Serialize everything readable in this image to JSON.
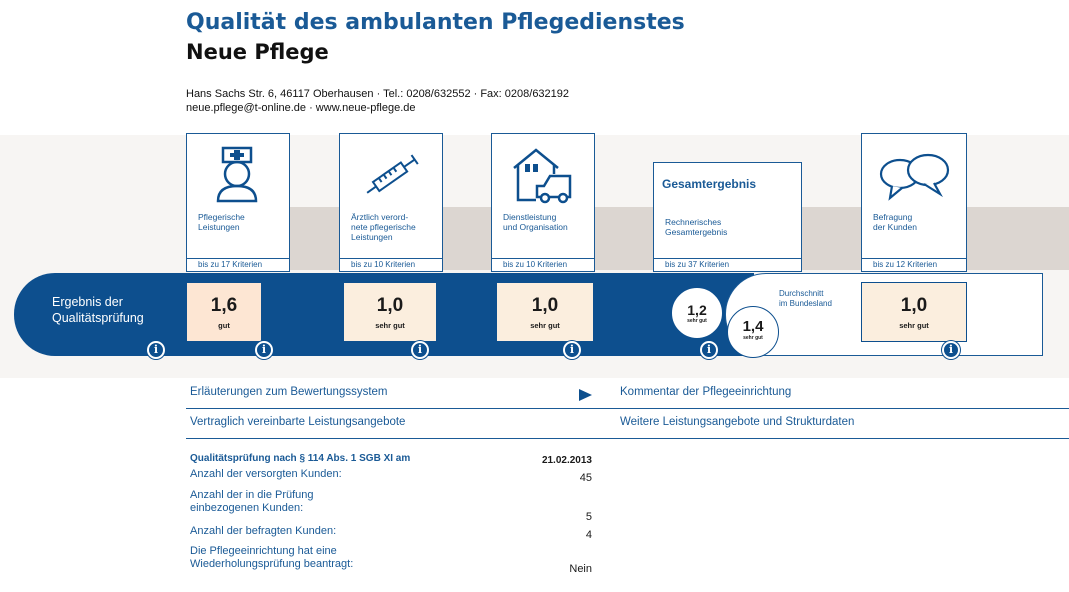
{
  "header": {
    "title": "Qualität des ambulanten Pflegedienstes",
    "name": "Neue Pflege",
    "address_line": "Hans Sachs Str. 6, 46117 Oberhausen · Tel.: 0208/632552 · Fax: 0208/632192",
    "contact_line": "neue.pflege@t-online.de · www.neue-pflege.de"
  },
  "result_label_line1": "Ergebnis der",
  "result_label_line2": "Qualitätsprüfung",
  "categories": [
    {
      "label_line1": "Pflegerische",
      "label_line2": "Leistungen",
      "label_line3": "",
      "criteria": "bis zu 17 Kriterien",
      "score": "1,6",
      "grade": "gut",
      "icon": "nurse-icon"
    },
    {
      "label_line1": "Ärztlich verord-",
      "label_line2": "nete pflegerische",
      "label_line3": "Leistungen",
      "criteria": "bis zu 10 Kriterien",
      "score": "1,0",
      "grade": "sehr gut",
      "icon": "syringe-icon"
    },
    {
      "label_line1": "Dienstleistung",
      "label_line2": "und Organisation",
      "label_line3": "",
      "criteria": "bis zu 10 Kriterien",
      "score": "1,0",
      "grade": "sehr gut",
      "icon": "house-car-icon"
    },
    {
      "heading": "Gesamtergebnis",
      "label_line1": "Rechnerisches",
      "label_line2": "Gesamtergebnis",
      "label_line3": "",
      "criteria": "bis zu 37 Kriterien",
      "score": "1,2",
      "grade": "sehr gut"
    },
    {
      "label_line1": "Befragung",
      "label_line2": "der Kunden",
      "label_line3": "",
      "criteria": "bis zu 12 Kriterien",
      "score": "1,0",
      "grade": "sehr gut",
      "icon": "speech-bubbles-icon"
    }
  ],
  "state_average": {
    "label_line1": "Durchschnitt",
    "label_line2": "im Bundesland",
    "score": "1,4",
    "grade": "sehr gut"
  },
  "info_glyph": "i",
  "links": {
    "explanations": "Erläuterungen zum Bewertungssystem",
    "contract_services": "Vertraglich vereinbarte Leistungsangebote",
    "comment": "Kommentar der Pflegeeinrichtung",
    "more_services": "Weitere Leistungsangebote und Strukturdaten"
  },
  "facts": [
    {
      "label": "Qualitätsprüfung nach § 114 Abs. 1 SGB XI am",
      "value": "21.02.2013"
    },
    {
      "label": "Anzahl der versorgten Kunden:",
      "value": "45"
    },
    {
      "label_line1": "Anzahl der in die Prüfung",
      "label_line2": "einbezogenen Kunden:",
      "value": "5"
    },
    {
      "label": "Anzahl der befragten Kunden:",
      "value": "4"
    },
    {
      "label_line1": "Die Pflegeeinrichtung hat eine",
      "label_line2": "Wiederholungsprüfung beantragt:",
      "value": "Nein"
    }
  ],
  "colors": {
    "primary": "#0d4f8e",
    "text_blue": "#1a5a96",
    "band_gray": "#dcd6d1",
    "score_bg": "#fbeede",
    "score_bg_highlight": "#fde6d3"
  }
}
